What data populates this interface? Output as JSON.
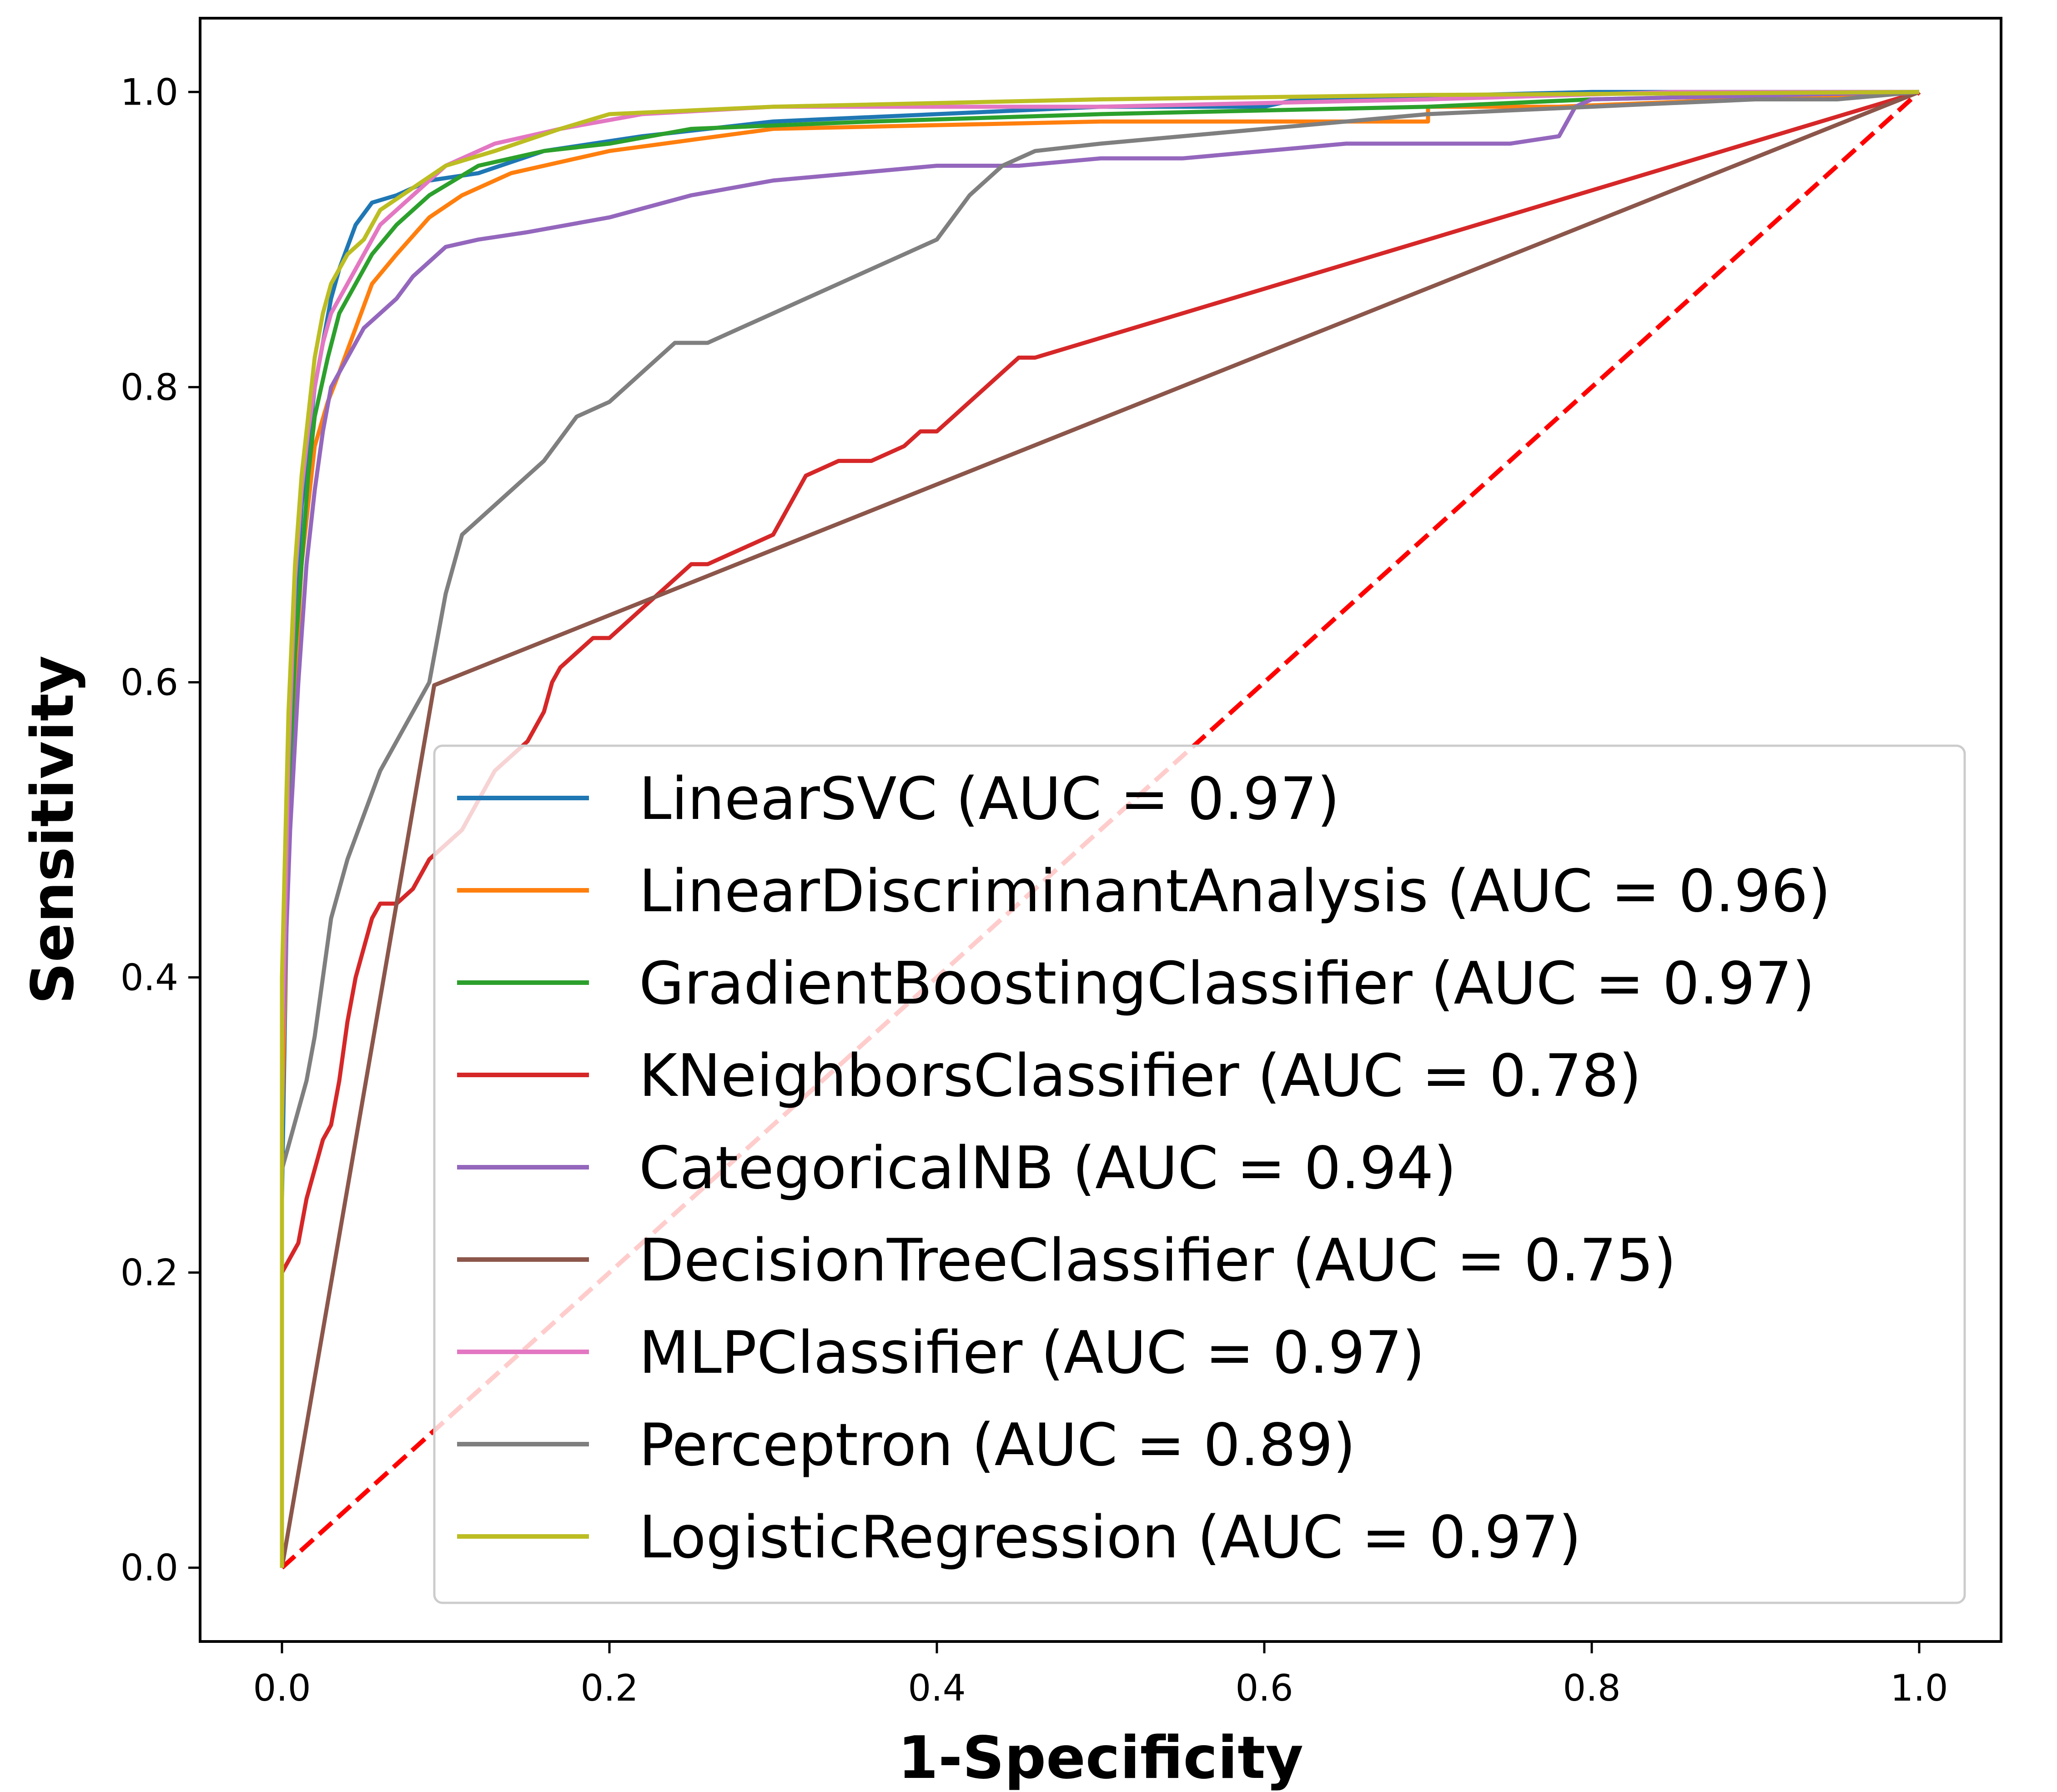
{
  "chart_data": {
    "type": "line",
    "title": "",
    "xlabel": "1-Specificity",
    "ylabel": "Sensitivity",
    "xlim": [
      -0.05,
      1.05
    ],
    "ylim": [
      -0.05,
      1.05
    ],
    "x_ticks": [
      "0.0",
      "0.2",
      "0.4",
      "0.6",
      "0.8",
      "1.0"
    ],
    "y_ticks": [
      "0.0",
      "0.2",
      "0.4",
      "0.6",
      "0.8",
      "1.0"
    ],
    "grid": false,
    "legend_position": "lower-right",
    "series": [
      {
        "name": "LinearSVC (AUC = 0.97)",
        "color": "#1f77b4",
        "x": [
          0.0,
          0.0,
          0.003,
          0.005,
          0.008,
          0.012,
          0.016,
          0.02,
          0.025,
          0.03,
          0.035,
          0.045,
          0.055,
          0.07,
          0.09,
          0.12,
          0.16,
          0.22,
          0.3,
          0.4,
          0.5,
          0.6,
          0.62,
          0.8,
          1.0
        ],
        "y": [
          0.0,
          0.25,
          0.45,
          0.58,
          0.65,
          0.72,
          0.76,
          0.8,
          0.83,
          0.86,
          0.88,
          0.91,
          0.925,
          0.93,
          0.94,
          0.945,
          0.96,
          0.97,
          0.98,
          0.985,
          0.99,
          0.99,
          0.995,
          1.0,
          1.0
        ]
      },
      {
        "name": "LinearDiscriminantAnalysis (AUC = 0.96)",
        "color": "#ff7f0e",
        "x": [
          0.0,
          0.0,
          0.004,
          0.008,
          0.012,
          0.016,
          0.02,
          0.028,
          0.035,
          0.045,
          0.055,
          0.07,
          0.09,
          0.11,
          0.14,
          0.2,
          0.3,
          0.5,
          0.7,
          0.7,
          0.78,
          1.0
        ],
        "y": [
          0.0,
          0.3,
          0.5,
          0.6,
          0.68,
          0.72,
          0.76,
          0.79,
          0.81,
          0.84,
          0.87,
          0.89,
          0.915,
          0.93,
          0.945,
          0.96,
          0.975,
          0.98,
          0.98,
          0.99,
          0.99,
          1.0
        ]
      },
      {
        "name": "GradientBoostingClassifier (AUC = 0.97)",
        "color": "#2ca02c",
        "x": [
          0.0,
          0.0,
          0.004,
          0.008,
          0.012,
          0.016,
          0.02,
          0.028,
          0.035,
          0.045,
          0.055,
          0.07,
          0.09,
          0.12,
          0.16,
          0.2,
          0.25,
          0.36,
          0.5,
          0.7,
          0.8,
          1.0
        ],
        "y": [
          0.0,
          0.38,
          0.52,
          0.62,
          0.68,
          0.74,
          0.78,
          0.82,
          0.85,
          0.87,
          0.89,
          0.91,
          0.93,
          0.95,
          0.96,
          0.965,
          0.975,
          0.98,
          0.985,
          0.99,
          0.995,
          1.0
        ]
      },
      {
        "name": "KNeighborsClassifier (AUC = 0.78)",
        "color": "#d62728",
        "x": [
          0.0,
          0.0,
          0.01,
          0.015,
          0.02,
          0.025,
          0.03,
          0.035,
          0.04,
          0.045,
          0.05,
          0.055,
          0.06,
          0.07,
          0.08,
          0.09,
          0.1,
          0.11,
          0.12,
          0.13,
          0.14,
          0.15,
          0.16,
          0.165,
          0.17,
          0.18,
          0.19,
          0.2,
          0.22,
          0.24,
          0.25,
          0.26,
          0.28,
          0.3,
          0.31,
          0.32,
          0.34,
          0.36,
          0.38,
          0.39,
          0.4,
          0.41,
          0.42,
          0.43,
          0.44,
          0.45,
          0.46,
          1.0
        ],
        "y": [
          0.0,
          0.2,
          0.22,
          0.25,
          0.27,
          0.29,
          0.3,
          0.33,
          0.37,
          0.4,
          0.42,
          0.44,
          0.45,
          0.45,
          0.46,
          0.48,
          0.49,
          0.5,
          0.52,
          0.54,
          0.55,
          0.56,
          0.58,
          0.6,
          0.61,
          0.62,
          0.63,
          0.63,
          0.65,
          0.67,
          0.68,
          0.68,
          0.69,
          0.7,
          0.72,
          0.74,
          0.75,
          0.75,
          0.76,
          0.77,
          0.77,
          0.78,
          0.79,
          0.8,
          0.81,
          0.82,
          0.82,
          1.0
        ]
      },
      {
        "name": "CategoricalNB (AUC = 0.94)",
        "color": "#9467bd",
        "x": [
          0.0,
          0.0,
          0.005,
          0.01,
          0.015,
          0.02,
          0.025,
          0.03,
          0.04,
          0.05,
          0.06,
          0.07,
          0.08,
          0.09,
          0.1,
          0.12,
          0.15,
          0.2,
          0.25,
          0.3,
          0.35,
          0.4,
          0.45,
          0.5,
          0.55,
          0.6,
          0.65,
          0.7,
          0.75,
          0.78,
          0.79,
          0.8,
          1.0
        ],
        "y": [
          0.0,
          0.35,
          0.5,
          0.6,
          0.68,
          0.73,
          0.77,
          0.8,
          0.82,
          0.84,
          0.85,
          0.86,
          0.875,
          0.885,
          0.895,
          0.9,
          0.905,
          0.915,
          0.93,
          0.94,
          0.945,
          0.95,
          0.95,
          0.955,
          0.955,
          0.96,
          0.965,
          0.965,
          0.965,
          0.97,
          0.99,
          0.995,
          1.0
        ]
      },
      {
        "name": "DecisionTreeClassifier (AUC = 0.75)",
        "color": "#8c564b",
        "x": [
          0.0,
          0.093,
          1.0
        ],
        "y": [
          0.0,
          0.598,
          1.0
        ]
      },
      {
        "name": "MLPClassifier (AUC = 0.97)",
        "color": "#e377c2",
        "x": [
          0.0,
          0.0,
          0.004,
          0.008,
          0.012,
          0.016,
          0.02,
          0.025,
          0.03,
          0.04,
          0.05,
          0.06,
          0.08,
          0.1,
          0.13,
          0.17,
          0.22,
          0.3,
          0.5,
          0.7,
          0.85,
          1.0
        ],
        "y": [
          0.0,
          0.35,
          0.55,
          0.67,
          0.73,
          0.77,
          0.8,
          0.83,
          0.85,
          0.87,
          0.89,
          0.91,
          0.93,
          0.95,
          0.965,
          0.975,
          0.985,
          0.99,
          0.99,
          0.995,
          1.0,
          1.0
        ]
      },
      {
        "name": "Perceptron (AUC = 0.89)",
        "color": "#7f7f7f",
        "x": [
          0.0,
          0.0,
          0.005,
          0.01,
          0.015,
          0.02,
          0.025,
          0.03,
          0.04,
          0.05,
          0.06,
          0.07,
          0.08,
          0.09,
          0.1,
          0.11,
          0.12,
          0.14,
          0.16,
          0.18,
          0.2,
          0.22,
          0.24,
          0.26,
          0.28,
          0.3,
          0.32,
          0.34,
          0.36,
          0.38,
          0.4,
          0.42,
          0.44,
          0.46,
          0.5,
          0.55,
          0.6,
          0.65,
          0.7,
          0.8,
          0.9,
          0.95,
          1.0
        ],
        "y": [
          0.0,
          0.27,
          0.29,
          0.31,
          0.33,
          0.36,
          0.4,
          0.44,
          0.48,
          0.51,
          0.54,
          0.56,
          0.58,
          0.6,
          0.66,
          0.7,
          0.71,
          0.73,
          0.75,
          0.78,
          0.79,
          0.81,
          0.83,
          0.83,
          0.84,
          0.85,
          0.86,
          0.87,
          0.88,
          0.89,
          0.9,
          0.93,
          0.95,
          0.96,
          0.965,
          0.97,
          0.975,
          0.98,
          0.985,
          0.99,
          0.995,
          0.995,
          1.0
        ]
      },
      {
        "name": "LogisticRegression (AUC = 0.97)",
        "color": "#bcbd22",
        "x": [
          0.0,
          0.0,
          0.004,
          0.008,
          0.012,
          0.016,
          0.02,
          0.025,
          0.03,
          0.04,
          0.05,
          0.06,
          0.08,
          0.1,
          0.13,
          0.17,
          0.2,
          0.3,
          0.5,
          0.7,
          1.0
        ],
        "y": [
          0.0,
          0.4,
          0.58,
          0.68,
          0.74,
          0.78,
          0.82,
          0.85,
          0.87,
          0.89,
          0.9,
          0.92,
          0.935,
          0.95,
          0.96,
          0.975,
          0.985,
          0.99,
          0.995,
          0.998,
          1.0
        ]
      }
    ],
    "reference_line": {
      "color": "#ff0000",
      "style": "dashed",
      "x": [
        0.0,
        1.0
      ],
      "y": [
        0.0,
        1.0
      ]
    }
  }
}
